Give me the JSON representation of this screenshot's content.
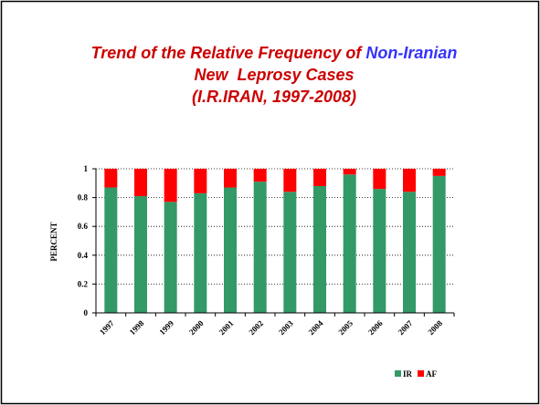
{
  "chart_data": {
    "type": "stacked_bar",
    "title": [
      "Trend of the Relative Frequency of",
      "Non-Iranian",
      "New  Leprosy Cases",
      "(I.R.IRAN, 1997-2008)"
    ],
    "title_colors": [
      "#cc0000",
      "#3333ff",
      "#cc0000",
      "#cc0000"
    ],
    "y_label": "PERCENT",
    "categories": [
      "1997",
      "1998",
      "1999",
      "2000",
      "2001",
      "2002",
      "2003",
      "2004",
      "2005",
      "2006",
      "2007",
      "2008"
    ],
    "series": [
      {
        "name": "IR",
        "color": "#339966",
        "values": [
          0.87,
          0.81,
          0.77,
          0.83,
          0.87,
          0.91,
          0.84,
          0.88,
          0.96,
          0.86,
          0.84,
          0.95
        ]
      },
      {
        "name": "AF",
        "color": "#ff0000",
        "values": [
          0.13,
          0.19,
          0.23,
          0.17,
          0.13,
          0.09,
          0.16,
          0.12,
          0.04,
          0.14,
          0.16,
          0.05
        ]
      }
    ],
    "ylim": [
      0,
      1
    ],
    "yticks": [
      0,
      0.2,
      0.4,
      0.6,
      0.8,
      1
    ],
    "grid": true,
    "legend": "bottom-right"
  }
}
